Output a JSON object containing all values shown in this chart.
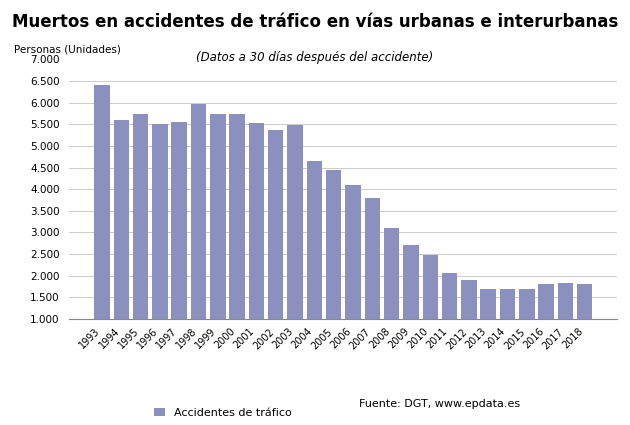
{
  "title": "Muertos en accidentes de tráfico en vías urbanas e interurbanas",
  "subtitle": "(Datos a 30 días después del accidente)",
  "ylabel": "Personas (Unidades)",
  "legend_label": "Accidentes de tráfico",
  "source_label": "Fuente: DGT, www.epdata.es",
  "bar_color": "#8b90be",
  "background_color": "#ffffff",
  "grid_color": "#cccccc",
  "years": [
    1993,
    1994,
    1995,
    1996,
    1997,
    1998,
    1999,
    2000,
    2001,
    2002,
    2003,
    2004,
    2005,
    2006,
    2007,
    2008,
    2009,
    2010,
    2011,
    2012,
    2013,
    2014,
    2015,
    2016,
    2017,
    2018
  ],
  "values": [
    6400,
    5600,
    5750,
    5500,
    5560,
    5960,
    5750,
    5750,
    5520,
    5370,
    5480,
    4650,
    4450,
    4100,
    3800,
    3100,
    2700,
    2480,
    2060,
    1900,
    1680,
    1688,
    1689,
    1810,
    1830,
    1806
  ],
  "ylim": [
    1000,
    7000
  ],
  "yticks": [
    1000,
    1500,
    2000,
    2500,
    3000,
    3500,
    4000,
    4500,
    5000,
    5500,
    6000,
    6500,
    7000
  ]
}
